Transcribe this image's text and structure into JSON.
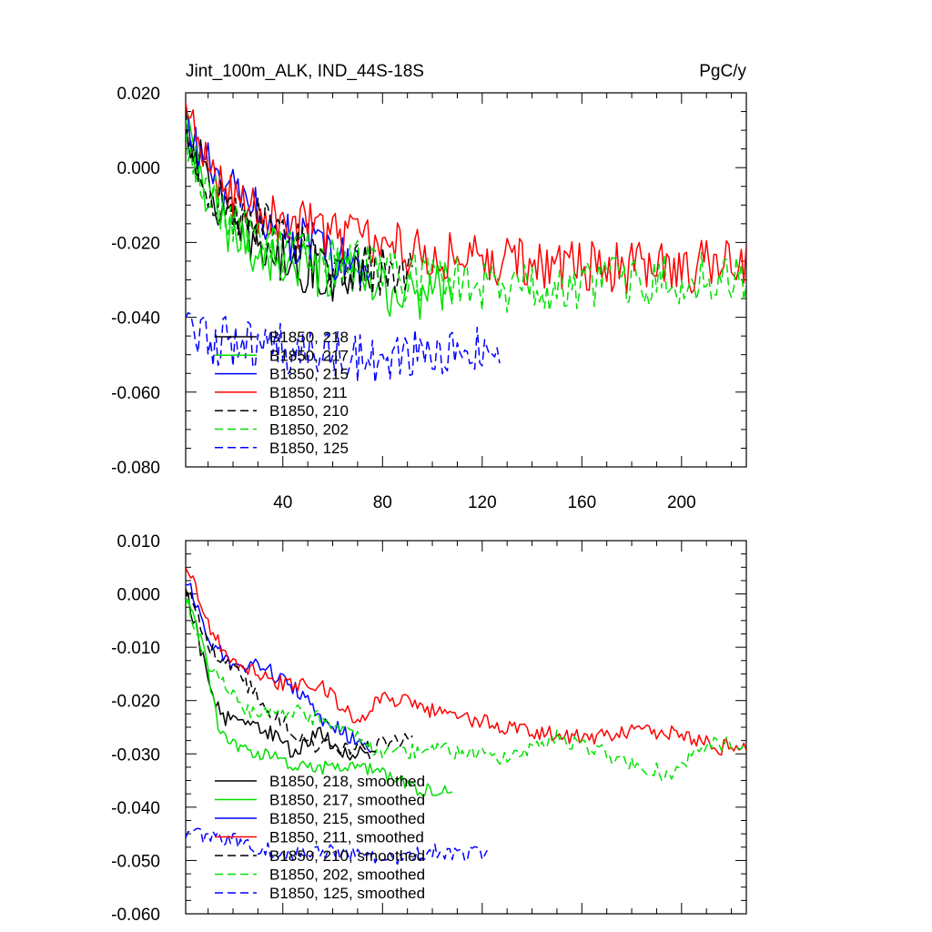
{
  "figure": {
    "title": "Jint_100m_ALK, IND_44S-18S",
    "units": "PgC/y"
  },
  "chart_data": [
    {
      "type": "line",
      "title": "Jint_100m_ALK, IND_44S-18S",
      "units": "PgC/y",
      "xlim": [
        1,
        226
      ],
      "ylim": [
        -0.08,
        0.02
      ],
      "x_ticks": [
        40,
        80,
        120,
        160,
        200
      ],
      "x_tick_labels": [
        "40",
        "80",
        "120",
        "160",
        "200"
      ],
      "y_ticks": [
        -0.08,
        -0.06,
        -0.04,
        -0.02,
        0.0,
        0.02
      ],
      "y_tick_labels": [
        "-0.080",
        "-0.060",
        "-0.040",
        "-0.020",
        "0.000",
        "0.020"
      ],
      "legend_position": "lower-left",
      "noise": 0.007,
      "series": [
        {
          "name": "B1850, 218",
          "color": "#000000",
          "dash": "solid",
          "length": 75,
          "keys": [
            [
              1,
              0.012
            ],
            [
              10,
              -0.005
            ],
            [
              20,
              -0.016
            ],
            [
              40,
              -0.025
            ],
            [
              60,
              -0.029
            ],
            [
              75,
              -0.026
            ]
          ]
        },
        {
          "name": "B1850, 217",
          "color": "#00e000",
          "dash": "solid",
          "length": 108,
          "keys": [
            [
              1,
              0.01
            ],
            [
              8,
              -0.006
            ],
            [
              18,
              -0.018
            ],
            [
              40,
              -0.026
            ],
            [
              70,
              -0.031
            ],
            [
              90,
              -0.035
            ],
            [
              108,
              -0.03
            ]
          ]
        },
        {
          "name": "B1850, 215",
          "color": "#0000ff",
          "dash": "solid",
          "length": 75,
          "keys": [
            [
              1,
              0.011
            ],
            [
              15,
              -0.005
            ],
            [
              30,
              -0.012
            ],
            [
              45,
              -0.019
            ],
            [
              60,
              -0.024
            ],
            [
              75,
              -0.028
            ]
          ]
        },
        {
          "name": "B1850, 211",
          "color": "#ff0000",
          "dash": "solid",
          "length": 226,
          "keys": [
            [
              1,
              0.014
            ],
            [
              10,
              0.0
            ],
            [
              30,
              -0.012
            ],
            [
              60,
              -0.017
            ],
            [
              90,
              -0.022
            ],
            [
              130,
              -0.025
            ],
            [
              180,
              -0.027
            ],
            [
              226,
              -0.026
            ]
          ]
        },
        {
          "name": "B1850, 210",
          "color": "#000000",
          "dash": "dash",
          "length": 92,
          "keys": [
            [
              1,
              0.011
            ],
            [
              12,
              -0.008
            ],
            [
              30,
              -0.015
            ],
            [
              60,
              -0.026
            ],
            [
              92,
              -0.028
            ]
          ]
        },
        {
          "name": "B1850, 202",
          "color": "#00e000",
          "dash": "dash",
          "length": 226,
          "keys": [
            [
              1,
              0.008
            ],
            [
              12,
              -0.008
            ],
            [
              30,
              -0.02
            ],
            [
              80,
              -0.028
            ],
            [
              130,
              -0.032
            ],
            [
              180,
              -0.03
            ],
            [
              226,
              -0.029
            ]
          ]
        },
        {
          "name": "B1850, 125",
          "color": "#0000ff",
          "dash": "dash",
          "length": 127,
          "keys": [
            [
              1,
              -0.045
            ],
            [
              30,
              -0.048
            ],
            [
              70,
              -0.051
            ],
            [
              100,
              -0.05
            ],
            [
              127,
              -0.049
            ]
          ]
        }
      ]
    },
    {
      "type": "line",
      "title": "",
      "xlim": [
        1,
        226
      ],
      "ylim": [
        -0.06,
        0.01
      ],
      "x_ticks": [
        40,
        80,
        120,
        160,
        200
      ],
      "x_tick_labels": [],
      "y_ticks": [
        -0.06,
        -0.05,
        -0.04,
        -0.03,
        -0.02,
        -0.01,
        0.0,
        0.01
      ],
      "y_tick_labels": [
        "-0.060",
        "-0.050",
        "-0.040",
        "-0.030",
        "-0.020",
        "-0.010",
        "0.000",
        "0.010"
      ],
      "legend_position": "lower-left",
      "noise": 0.0015,
      "series": [
        {
          "name": "B1850, 218, smoothed",
          "color": "#000000",
          "dash": "solid",
          "length": 75,
          "keys": [
            [
              1,
              0.001
            ],
            [
              8,
              -0.012
            ],
            [
              15,
              -0.023
            ],
            [
              25,
              -0.024
            ],
            [
              35,
              -0.026
            ],
            [
              45,
              -0.03
            ],
            [
              55,
              -0.026
            ],
            [
              65,
              -0.03
            ],
            [
              75,
              -0.03
            ]
          ]
        },
        {
          "name": "B1850, 217, smoothed",
          "color": "#00e000",
          "dash": "solid",
          "length": 108,
          "keys": [
            [
              1,
              0.0
            ],
            [
              8,
              -0.01
            ],
            [
              15,
              -0.027
            ],
            [
              30,
              -0.03
            ],
            [
              50,
              -0.033
            ],
            [
              70,
              -0.032
            ],
            [
              90,
              -0.036
            ],
            [
              100,
              -0.037
            ],
            [
              108,
              -0.036
            ]
          ]
        },
        {
          "name": "B1850, 215, smoothed",
          "color": "#0000ff",
          "dash": "solid",
          "length": 75,
          "keys": [
            [
              1,
              0.003
            ],
            [
              10,
              -0.008
            ],
            [
              20,
              -0.014
            ],
            [
              30,
              -0.013
            ],
            [
              45,
              -0.018
            ],
            [
              55,
              -0.023
            ],
            [
              65,
              -0.026
            ],
            [
              75,
              -0.03
            ]
          ]
        },
        {
          "name": "B1850, 211, smoothed",
          "color": "#ff0000",
          "dash": "solid",
          "length": 226,
          "keys": [
            [
              1,
              0.006
            ],
            [
              10,
              -0.006
            ],
            [
              20,
              -0.013
            ],
            [
              40,
              -0.017
            ],
            [
              55,
              -0.017
            ],
            [
              70,
              -0.024
            ],
            [
              80,
              -0.019
            ],
            [
              100,
              -0.022
            ],
            [
              130,
              -0.025
            ],
            [
              160,
              -0.027
            ],
            [
              180,
              -0.026
            ],
            [
              200,
              -0.026
            ],
            [
              215,
              -0.029
            ],
            [
              226,
              -0.028
            ]
          ]
        },
        {
          "name": "B1850, 210, smoothed",
          "color": "#000000",
          "dash": "dash",
          "length": 92,
          "keys": [
            [
              1,
              0.002
            ],
            [
              10,
              -0.01
            ],
            [
              20,
              -0.014
            ],
            [
              35,
              -0.022
            ],
            [
              50,
              -0.028
            ],
            [
              65,
              -0.029
            ],
            [
              80,
              -0.028
            ],
            [
              92,
              -0.027
            ]
          ]
        },
        {
          "name": "B1850, 202, smoothed",
          "color": "#00e000",
          "dash": "dash",
          "length": 226,
          "keys": [
            [
              1,
              -0.001
            ],
            [
              10,
              -0.013
            ],
            [
              25,
              -0.022
            ],
            [
              45,
              -0.022
            ],
            [
              65,
              -0.025
            ],
            [
              80,
              -0.03
            ],
            [
              100,
              -0.029
            ],
            [
              130,
              -0.031
            ],
            [
              150,
              -0.027
            ],
            [
              170,
              -0.03
            ],
            [
              195,
              -0.034
            ],
            [
              210,
              -0.028
            ],
            [
              226,
              -0.028
            ]
          ]
        },
        {
          "name": "B1850, 125, smoothed",
          "color": "#0000ff",
          "dash": "dash",
          "length": 122,
          "keys": [
            [
              1,
              -0.045
            ],
            [
              20,
              -0.046
            ],
            [
              40,
              -0.049
            ],
            [
              60,
              -0.048
            ],
            [
              80,
              -0.05
            ],
            [
              100,
              -0.048
            ],
            [
              122,
              -0.049
            ]
          ]
        }
      ]
    }
  ]
}
